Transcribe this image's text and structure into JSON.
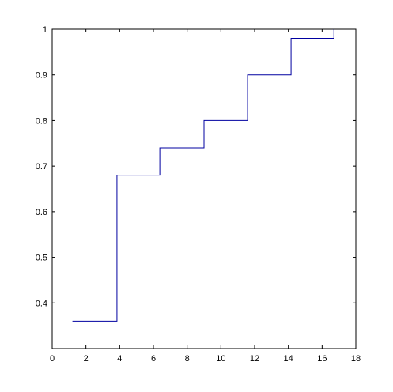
{
  "chart_data": {
    "type": "stairs",
    "x": [
      1.2,
      3.84,
      6.38,
      9.0,
      11.58,
      14.16,
      16.7
    ],
    "values": [
      0.36,
      0.68,
      0.74,
      0.8,
      0.9,
      0.98,
      1
    ],
    "color": "#0000a0",
    "xlim": [
      0,
      18
    ],
    "xticks": [
      0,
      2,
      4,
      6,
      8,
      10,
      12,
      14,
      16,
      18
    ],
    "ylim": [
      0.3,
      1
    ],
    "yticks": [
      0.4,
      0.5,
      0.6,
      0.7,
      0.8,
      0.9,
      1
    ],
    "grid": false
  }
}
